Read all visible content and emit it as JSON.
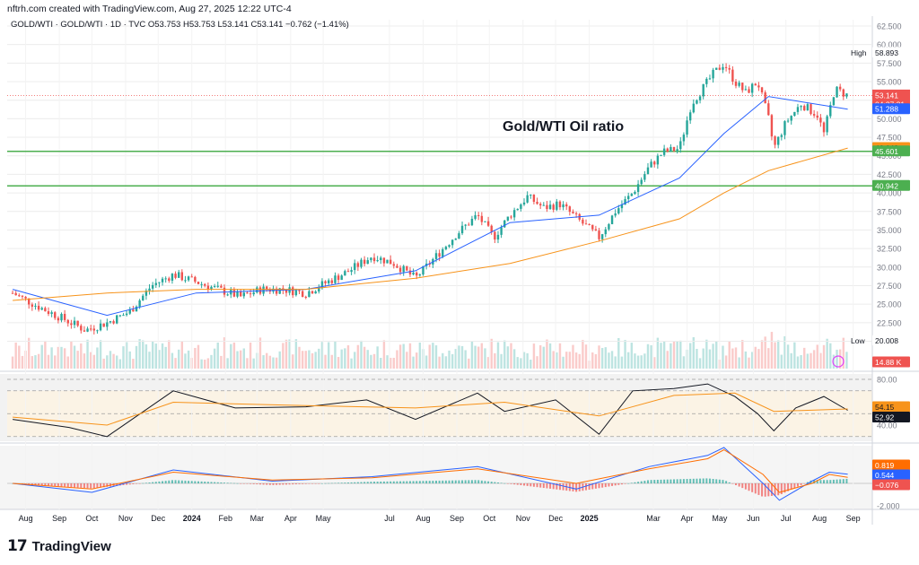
{
  "header": {
    "created_line": "nftrh.com created with TradingView.com, Aug 27, 2025 12:22 UTC-4"
  },
  "legend": {
    "symbol": "GOLD/WTI · GOLD/WTI · 1D · TVC",
    "ohlc": "O53.753  H53.753  L53.141  C53.141  −0.762 (−1.41%)"
  },
  "footer": {
    "brand_mark": "17",
    "brand_name": "TradingView"
  },
  "colors": {
    "up": "#26a69a",
    "down": "#ef5350",
    "price_line": "#131722",
    "ma_short": "#2962ff",
    "ma_long": "#f7931a",
    "support": "#4caf50",
    "rsi_band": "#fff3e0",
    "macd_line": "#2962ff",
    "signal_line": "#ff6d00"
  },
  "chart_data": [
    {
      "type": "line",
      "panel": "price",
      "title": "Gold/WTI Oil ratio",
      "x_labels": [
        "Aug",
        "Sep",
        "Oct",
        "Nov",
        "Dec",
        "2024",
        "Feb",
        "Mar",
        "Apr",
        "May",
        "Jul",
        "Aug",
        "Sep",
        "Oct",
        "Nov",
        "Dec",
        "2025",
        "Mar",
        "Apr",
        "May",
        "Jun",
        "Jul",
        "Aug",
        "Sep"
      ],
      "y_ticks": [
        "62.500",
        "60.000",
        "57.500",
        "55.000",
        "52.500",
        "50.000",
        "47.500",
        "45.000",
        "42.500",
        "40.000",
        "37.500",
        "35.000",
        "32.500",
        "30.000",
        "27.500",
        "25.000",
        "22.500",
        "20.000"
      ],
      "ylim": [
        20.0,
        62.5
      ],
      "series": [
        {
          "x": [
            "2023-07-20",
            "2023-08-15",
            "2023-09-05",
            "2023-09-25",
            "2023-10-15",
            "2023-11-05",
            "2023-11-25",
            "2023-12-15",
            "2024-01-05",
            "2024-01-25",
            "2024-02-15",
            "2024-03-05",
            "2024-03-25",
            "2024-04-15",
            "2024-05-05",
            "2024-05-25",
            "2024-06-15",
            "2024-07-05",
            "2024-07-25",
            "2024-08-10",
            "2024-09-01",
            "2024-09-20",
            "2024-10-05",
            "2024-10-20",
            "2024-11-05",
            "2024-11-20",
            "2024-12-05",
            "2024-12-25",
            "2025-01-10",
            "2025-01-25",
            "2025-02-10",
            "2025-02-25",
            "2025-03-10",
            "2025-03-25",
            "2025-04-05",
            "2025-04-15",
            "2025-04-25",
            "2025-05-05",
            "2025-05-15",
            "2025-05-25",
            "2025-06-05",
            "2025-06-15",
            "2025-06-20",
            "2025-07-01",
            "2025-07-15",
            "2025-07-30",
            "2025-08-05",
            "2025-08-15",
            "2025-08-27"
          ],
          "values": [
            26.5,
            24.5,
            23.0,
            21.5,
            22.5,
            24.0,
            27.5,
            29.0,
            28.0,
            27.0,
            26.0,
            27.0,
            27.0,
            26.5,
            28.0,
            29.5,
            31.5,
            30.5,
            28.5,
            31.0,
            34.5,
            37.0,
            34.0,
            37.0,
            39.5,
            38.0,
            38.5,
            36.0,
            34.0,
            37.5,
            40.0,
            43.5,
            45.5,
            46.0,
            52.0,
            54.0,
            56.0,
            57.5,
            55.0,
            53.5,
            55.0,
            50.0,
            46.0,
            49.5,
            52.0,
            50.5,
            48.0,
            54.0,
            53.141
          ]
        },
        {
          "name": "",
          "x": [
            "2023-07-20",
            "2023-10-15",
            "2024-01-05",
            "2024-04-15",
            "2024-07-25",
            "2024-10-20",
            "2025-01-10",
            "2025-03-25",
            "2025-05-05",
            "2025-06-15",
            "2025-08-27"
          ],
          "values": [
            27.0,
            23.5,
            26.5,
            27.0,
            29.5,
            36.0,
            37.0,
            42.0,
            48.0,
            53.0,
            51.288
          ]
        },
        {
          "name": "",
          "x": [
            "2023-07-20",
            "2023-10-15",
            "2024-01-05",
            "2024-04-15",
            "2024-07-25",
            "2024-10-20",
            "2025-01-10",
            "2025-03-25",
            "2025-05-05",
            "2025-06-15",
            "2025-08-27"
          ],
          "values": [
            25.5,
            26.5,
            27.0,
            27.0,
            28.5,
            30.5,
            33.5,
            36.5,
            40.0,
            43.0,
            46.049
          ]
        }
      ],
      "horizontal_lines": [
        45.601,
        40.942
      ],
      "price_labels": [
        {
          "label": "High",
          "value": "58.893"
        },
        {
          "value": "53.141",
          "sub": "04:37:31"
        },
        {
          "value": "51.288"
        },
        {
          "value": "46.049"
        },
        {
          "value": "45.601"
        },
        {
          "value": "40.942"
        },
        {
          "label": "Low",
          "value": "20.008"
        },
        {
          "value": "14.88 K"
        }
      ]
    },
    {
      "type": "line",
      "panel": "rsi",
      "y_ticks": [
        "80.00",
        "40.00"
      ],
      "ylim": [
        20,
        90
      ],
      "series": [
        {
          "x": [
            "2023-07-20",
            "2023-09-10",
            "2023-10-15",
            "2023-12-15",
            "2024-02-10",
            "2024-04-15",
            "2024-06-10",
            "2024-07-25",
            "2024-09-20",
            "2024-10-15",
            "2024-12-01",
            "2025-01-10",
            "2025-02-10",
            "2025-03-20",
            "2025-04-20",
            "2025-05-15",
            "2025-06-05",
            "2025-06-20",
            "2025-07-10",
            "2025-08-05",
            "2025-08-27"
          ],
          "values": [
            45,
            38,
            30,
            70,
            55,
            56,
            62,
            45,
            68,
            52,
            62,
            32,
            70,
            72,
            76,
            65,
            50,
            35,
            55,
            65,
            52.92
          ]
        },
        {
          "x": [
            "2023-07-20",
            "2023-10-15",
            "2023-12-15",
            "2024-04-15",
            "2024-07-25",
            "2024-10-15",
            "2025-01-10",
            "2025-03-20",
            "2025-05-15",
            "2025-06-20",
            "2025-08-27"
          ],
          "values": [
            47,
            40,
            60,
            57,
            55,
            60,
            48,
            66,
            68,
            52,
            54.15
          ]
        }
      ]
    },
    {
      "type": "line",
      "panel": "macd",
      "y_ticks": [
        "-2.000"
      ],
      "ylim": [
        -2.5,
        4.5
      ],
      "series": [
        {
          "x": [
            "2023-07-20",
            "2023-10-01",
            "2023-12-15",
            "2024-03-15",
            "2024-06-15",
            "2024-09-20",
            "2024-12-20",
            "2025-02-25",
            "2025-04-20",
            "2025-05-05",
            "2025-06-10",
            "2025-06-25",
            "2025-07-25",
            "2025-08-10",
            "2025-08-27"
          ],
          "values": [
            0.0,
            -0.8,
            1.2,
            0.2,
            0.6,
            1.5,
            -0.5,
            1.5,
            2.5,
            3.2,
            0.0,
            -1.5,
            0.2,
            1.0,
            0.819
          ]
        },
        {
          "x": [
            "2023-07-20",
            "2023-10-01",
            "2023-12-15",
            "2024-03-15",
            "2024-06-15",
            "2024-09-20",
            "2024-12-20",
            "2025-02-25",
            "2025-04-20",
            "2025-05-05",
            "2025-06-10",
            "2025-06-25",
            "2025-07-25",
            "2025-08-10",
            "2025-08-27"
          ],
          "values": [
            0.0,
            -0.5,
            1.0,
            0.3,
            0.5,
            1.3,
            0.0,
            1.3,
            2.2,
            3.0,
            0.8,
            -0.8,
            0.0,
            0.8,
            0.544
          ]
        }
      ],
      "labels": [
        "0.819",
        "0.544",
        "−0.076"
      ]
    }
  ]
}
